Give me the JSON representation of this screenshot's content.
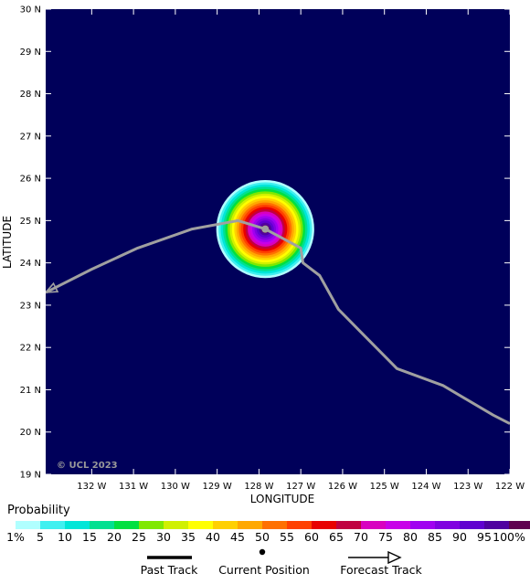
{
  "map": {
    "x_axis_title": "LONGITUDE",
    "y_axis_title": "LATITUDE",
    "lon_ticks": [
      "132 W",
      "131 W",
      "130 W",
      "129 W",
      "128 W",
      "127 W",
      "126 W",
      "125 W",
      "124 W",
      "123 W",
      "122 W"
    ],
    "lat_ticks": [
      "30 N",
      "29 N",
      "28 N",
      "27 N",
      "26 N",
      "25 N",
      "24 N",
      "23 N",
      "22 N",
      "21 N",
      "20 N",
      "19 N"
    ],
    "lon_range": [
      -133.1,
      -122.0
    ],
    "lat_range": [
      19.0,
      30.0
    ],
    "copyright": "© UCL 2023",
    "background_color": "#00005a",
    "track_color": "#a0a0a0"
  },
  "storm": {
    "current_position": {
      "lon": -127.85,
      "lat": 24.8
    },
    "probability_peak": 100,
    "probability_radius_deg": 1.15
  },
  "chart_data": {
    "type": "map",
    "track_lon_lat": [
      [
        -133.1,
        23.3
      ],
      [
        -132.0,
        23.85
      ],
      [
        -130.9,
        24.35
      ],
      [
        -129.6,
        24.8
      ],
      [
        -128.5,
        25.0
      ],
      [
        -127.85,
        24.8
      ],
      [
        -127.0,
        24.35
      ],
      [
        -126.95,
        24.0
      ],
      [
        -126.55,
        23.7
      ],
      [
        -126.1,
        22.9
      ],
      [
        -125.5,
        22.3
      ],
      [
        -124.7,
        21.5
      ],
      [
        -123.6,
        21.1
      ],
      [
        -122.4,
        20.4
      ],
      [
        -122.0,
        20.2
      ]
    ]
  },
  "legend": {
    "title": "Probability",
    "colorbar_colors": [
      "#b0ffff",
      "#40f0f0",
      "#00e6d8",
      "#00e090",
      "#00e040",
      "#80e800",
      "#d0f000",
      "#ffff00",
      "#ffd000",
      "#ffa800",
      "#ff7000",
      "#ff4000",
      "#e80000",
      "#c00040",
      "#d800c0",
      "#c800e8",
      "#a000f0",
      "#8000e0",
      "#6000d0",
      "#5000a0",
      "#600050"
    ],
    "colorbar_labels": [
      "1%",
      "5",
      "10",
      "15",
      "20",
      "25",
      "30",
      "35",
      "40",
      "45",
      "50",
      "55",
      "60",
      "65",
      "70",
      "75",
      "80",
      "85",
      "90",
      "95",
      "100%"
    ],
    "past_track_label": "Past Track",
    "current_position_label": "Current Position",
    "forecast_track_label": "Forecast Track"
  }
}
